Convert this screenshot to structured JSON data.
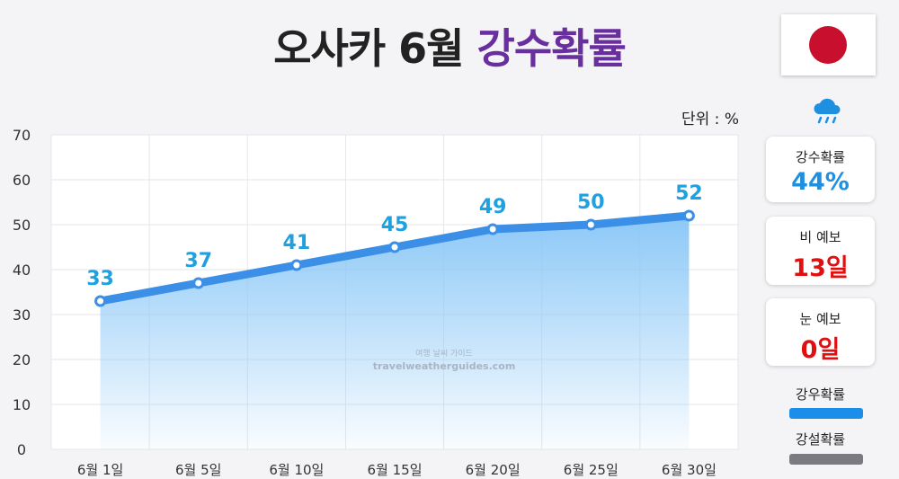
{
  "header": {
    "title_main": "오사카 6월",
    "title_accent": "강수확률",
    "unit": "단위 : %"
  },
  "colors": {
    "accent_title": "#6a2f9e",
    "line": "#3b8fe6",
    "label": "#1fa0e0",
    "rain_value": "#1f8fe0",
    "alert_value": "#e01010",
    "legend_rain": "#1a8ee8",
    "legend_snow": "#7a7a80"
  },
  "watermark": {
    "line1": "여행 날씨 가이드",
    "line2": "travelweatherguides.com"
  },
  "chart_data": {
    "type": "area",
    "title": "오사카 6월 강수확률",
    "categories": [
      "6월 1일",
      "6월 5일",
      "6월 10일",
      "6월 15일",
      "6월 20일",
      "6월 25일",
      "6월 30일"
    ],
    "series": [
      {
        "name": "강우확률",
        "values": [
          33,
          37,
          41,
          45,
          49,
          50,
          52
        ]
      }
    ],
    "data_labels": [
      "33",
      "37",
      "41",
      "45",
      "49",
      "50",
      "52"
    ],
    "ylim": [
      0,
      70
    ],
    "yticks": [
      "0",
      "10",
      "20",
      "30",
      "40",
      "50",
      "60",
      "70"
    ],
    "xlabel": "",
    "ylabel": "",
    "grid": true
  },
  "side_panel": {
    "cards": [
      {
        "label": "강수확률",
        "value": "44%"
      },
      {
        "label": "비 예보",
        "value": "13일"
      },
      {
        "label": "눈 예보",
        "value": "0일"
      }
    ],
    "legend": [
      {
        "label": "강우확률"
      },
      {
        "label": "강설확률"
      }
    ]
  }
}
